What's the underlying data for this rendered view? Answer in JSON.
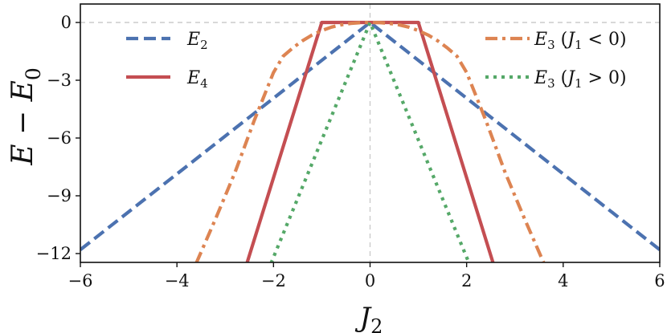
{
  "chart_data": {
    "type": "line",
    "xlabel": "J₂",
    "ylabel": "E − E₀",
    "xlim": [
      -6,
      6
    ],
    "ylim": [
      -12.5,
      1
    ],
    "xticks": [
      -6,
      -4,
      -2,
      0,
      2,
      4,
      6
    ],
    "yticks": [
      0,
      -3,
      -6,
      -9,
      -12
    ],
    "xtick_labels": [
      "−6",
      "−4",
      "−2",
      "0",
      "2",
      "4",
      "6"
    ],
    "ytick_labels": [
      "0",
      "−3",
      "−6",
      "−9",
      "−12"
    ],
    "reference_lines": {
      "x": 0,
      "y": 0,
      "style": "dashed",
      "color": "#cccccc"
    },
    "grid": false,
    "series": [
      {
        "name": "E₂",
        "label_parts": [
          [
            "E",
            "i"
          ],
          [
            "2",
            "sub"
          ]
        ],
        "legend_column": "left",
        "legend_row": 0,
        "color": "#4c72b0",
        "style": "dashed",
        "x": [
          -6,
          0,
          6
        ],
        "y": [
          -11.8,
          0,
          -11.8
        ]
      },
      {
        "name": "E₄",
        "label_parts": [
          [
            "E",
            "i"
          ],
          [
            "4",
            "sub"
          ]
        ],
        "legend_column": "left",
        "legend_row": 1,
        "color": "#c44e52",
        "style": "solid",
        "x": [
          -2.55,
          -1,
          1,
          2.55
        ],
        "y": [
          -12.5,
          0,
          0,
          -12.5
        ]
      },
      {
        "name": "E₃ (J₁ < 0)",
        "label_parts": [
          [
            "E",
            "i"
          ],
          [
            "3",
            "sub"
          ],
          [
            " (",
            "r"
          ],
          [
            "J",
            "i"
          ],
          [
            "1",
            "sub"
          ],
          [
            " < 0)",
            "r"
          ]
        ],
        "legend_column": "right",
        "legend_row": 0,
        "color": "#dd8452",
        "style": "dashdot",
        "x": [
          -3.6,
          -3.2,
          -2.8,
          -2.4,
          -2.0,
          -1.8,
          -1.6,
          -1.4,
          -1.2,
          -1.0,
          -0.8,
          -0.6,
          -0.4,
          -0.2,
          0,
          0.2,
          0.4,
          0.6,
          0.8,
          1.0,
          1.2,
          1.4,
          1.6,
          1.8,
          2.0,
          2.4,
          2.8,
          3.2,
          3.6
        ],
        "y": [
          -12.5,
          -10.2,
          -7.8,
          -5.1,
          -2.6,
          -1.75,
          -1.32,
          -0.95,
          -0.65,
          -0.42,
          -0.24,
          -0.12,
          -0.05,
          -0.01,
          0,
          -0.01,
          -0.05,
          -0.12,
          -0.24,
          -0.42,
          -0.65,
          -0.95,
          -1.32,
          -1.75,
          -2.6,
          -5.1,
          -7.8,
          -10.2,
          -12.5
        ]
      },
      {
        "name": "E₃ (J₁ > 0)",
        "label_parts": [
          [
            "E",
            "i"
          ],
          [
            "3",
            "sub"
          ],
          [
            " (",
            "r"
          ],
          [
            "J",
            "i"
          ],
          [
            "1",
            "sub"
          ],
          [
            " > 0)",
            "r"
          ]
        ],
        "legend_column": "right",
        "legend_row": 1,
        "color": "#55a868",
        "style": "dotted",
        "x": [
          -2.05,
          0,
          2.05
        ],
        "y": [
          -12.5,
          0,
          -12.5
        ]
      }
    ]
  }
}
